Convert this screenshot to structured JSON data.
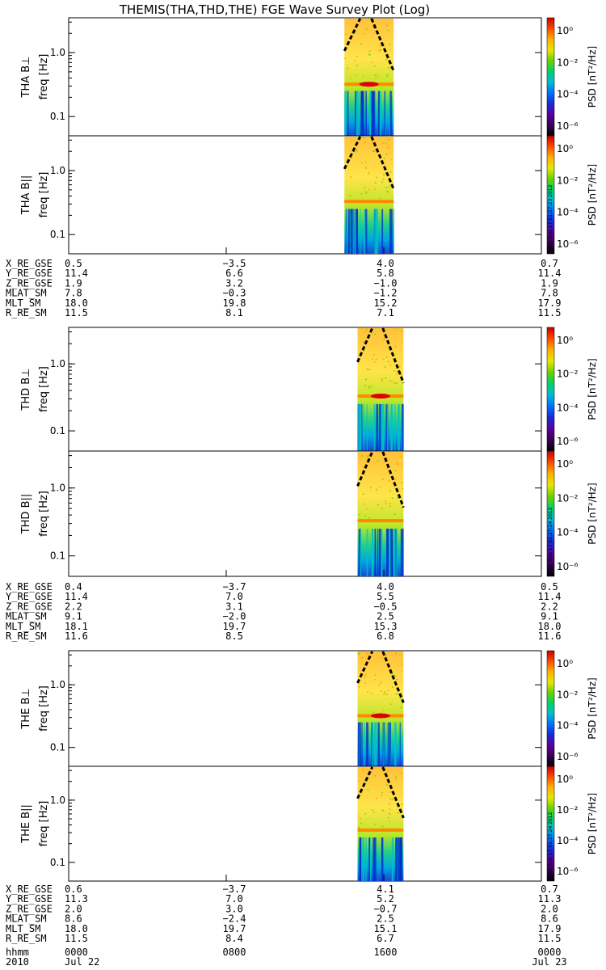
{
  "title": "THEMIS(THA,THD,THE) FGE Wave Survey Plot (Log)",
  "colors": {
    "colorbar": [
      "#000000",
      "#3a0057",
      "#5a00a0",
      "#1a2ad8",
      "#0070ff",
      "#00bcd4",
      "#00d26a",
      "#6ad100",
      "#e6e600",
      "#ffb000",
      "#ff4a00",
      "#c80000"
    ],
    "background_spectrum": "#ffd84a",
    "orbit_curve": "#000000"
  },
  "colorbar": {
    "label": "PSD [nT²/Hz]",
    "tick_labels": [
      "10⁰",
      "10⁻²",
      "10⁻⁴",
      "10⁻⁶"
    ]
  },
  "freq_ticks": [
    "1.0",
    "0.1"
  ],
  "probes": [
    {
      "name": "THA",
      "panels": [
        {
          "component": "THA B⊥",
          "axis": "freq [Hz]"
        },
        {
          "component": "THA B||",
          "axis": "freq [Hz]",
          "stamp": "Mon Sep 17 01:27:23 2012"
        }
      ],
      "orbit": [
        {
          "label": "X_RE_GSE",
          "values": [
            "0.5",
            "−3.5",
            "4.0",
            "0.7"
          ]
        },
        {
          "label": "Y_RE_GSE",
          "values": [
            "11.4",
            "6.6",
            "5.8",
            "11.4"
          ]
        },
        {
          "label": "Z_RE_GSE",
          "values": [
            "1.9",
            "3.2",
            "−1.0",
            "1.9"
          ]
        },
        {
          "label": "MLAT_SM",
          "values": [
            "7.8",
            "−0.3",
            "−1.2",
            "7.8"
          ]
        },
        {
          "label": "MLT_SM",
          "values": [
            "18.0",
            "19.8",
            "15.2",
            "17.9"
          ]
        },
        {
          "label": "R_RE_SM",
          "values": [
            "11.5",
            "8.1",
            "7.1",
            "11.5"
          ]
        }
      ]
    },
    {
      "name": "THD",
      "panels": [
        {
          "component": "THD B⊥",
          "axis": "freq [Hz]"
        },
        {
          "component": "THD B||",
          "axis": "freq [Hz]",
          "stamp": "Mon Sep 17 01:27:24 2012"
        }
      ],
      "orbit": [
        {
          "label": "X_RE_GSE",
          "values": [
            "0.4",
            "−3.7",
            "4.0",
            "0.5"
          ]
        },
        {
          "label": "Y_RE_GSE",
          "values": [
            "11.4",
            "7.0",
            "5.5",
            "11.4"
          ]
        },
        {
          "label": "Z_RE_GSE",
          "values": [
            "2.2",
            "3.1",
            "−0.5",
            "2.2"
          ]
        },
        {
          "label": "MLAT_SM",
          "values": [
            "9.1",
            "−2.0",
            "2.5",
            "9.1"
          ]
        },
        {
          "label": "MLT_SM",
          "values": [
            "18.1",
            "19.7",
            "15.3",
            "18.0"
          ]
        },
        {
          "label": "R_RE_SM",
          "values": [
            "11.6",
            "8.5",
            "6.8",
            "11.6"
          ]
        }
      ]
    },
    {
      "name": "THE",
      "panels": [
        {
          "component": "THE B⊥",
          "axis": "freq [Hz]"
        },
        {
          "component": "THE B||",
          "axis": "freq [Hz]",
          "stamp": "Mon Sep 17 01:27:24 2012"
        }
      ],
      "orbit": [
        {
          "label": "X_RE_GSE",
          "values": [
            "0.6",
            "−3.7",
            "4.1",
            "0.7"
          ]
        },
        {
          "label": "Y_RE_GSE",
          "values": [
            "11.3",
            "7.0",
            "5.2",
            "11.3"
          ]
        },
        {
          "label": "Z_RE_GSE",
          "values": [
            "2.0",
            "3.0",
            "−0.7",
            "2.0"
          ]
        },
        {
          "label": "MLAT_SM",
          "values": [
            "8.6",
            "−2.4",
            "2.5",
            "8.6"
          ]
        },
        {
          "label": "MLT_SM",
          "values": [
            "18.0",
            "19.7",
            "15.1",
            "17.9"
          ]
        },
        {
          "label": "R_RE_SM",
          "values": [
            "11.5",
            "8.4",
            "6.7",
            "11.5"
          ]
        }
      ]
    }
  ],
  "time_axis": {
    "row1_label": "hhmm",
    "row1_values": [
      "0000",
      "0800",
      "1600",
      "0000"
    ],
    "row2_label": "2010",
    "row2_values": [
      "Jul 22",
      "",
      "",
      "Jul 23"
    ]
  },
  "chart_data": {
    "type": "heatmap",
    "title": "THEMIS(THA,THD,THE) FGE Wave Survey Plot (Log)",
    "x_axis": {
      "label": "hhmm",
      "ticks": [
        "0000",
        "0800",
        "1600",
        "0000"
      ],
      "dates": [
        "2010 Jul 22",
        "2010 Jul 23"
      ]
    },
    "y_axis": {
      "label": "freq [Hz]",
      "scale": "log",
      "ticks": [
        0.1,
        1.0
      ],
      "range": [
        0.05,
        3.5
      ]
    },
    "z_axis": {
      "label": "PSD [nT²/Hz]",
      "scale": "log",
      "ticks": [
        1,
        0.01,
        0.0001,
        1e-06
      ]
    },
    "data_interval_hhmm": [
      {
        "probe": "THA",
        "start": "1400",
        "end": "1630"
      },
      {
        "probe": "THD",
        "start": "1440",
        "end": "1700"
      },
      {
        "probe": "THE",
        "start": "1440",
        "end": "1700"
      }
    ],
    "features": [
      {
        "probe": "THA",
        "component": "B⊥",
        "freq_hz": 0.32
      },
      {
        "probe": "THA",
        "component": "B||",
        "freq_hz": 0.33
      },
      {
        "probe": "THD",
        "component": "B⊥",
        "freq_hz": 0.33
      },
      {
        "probe": "THD",
        "component": "B||",
        "freq_hz": 0.33
      },
      {
        "probe": "THE",
        "component": "B⊥",
        "freq_hz": 0.32
      },
      {
        "probe": "THE",
        "component": "B||",
        "freq_hz": 0.33
      }
    ]
  }
}
